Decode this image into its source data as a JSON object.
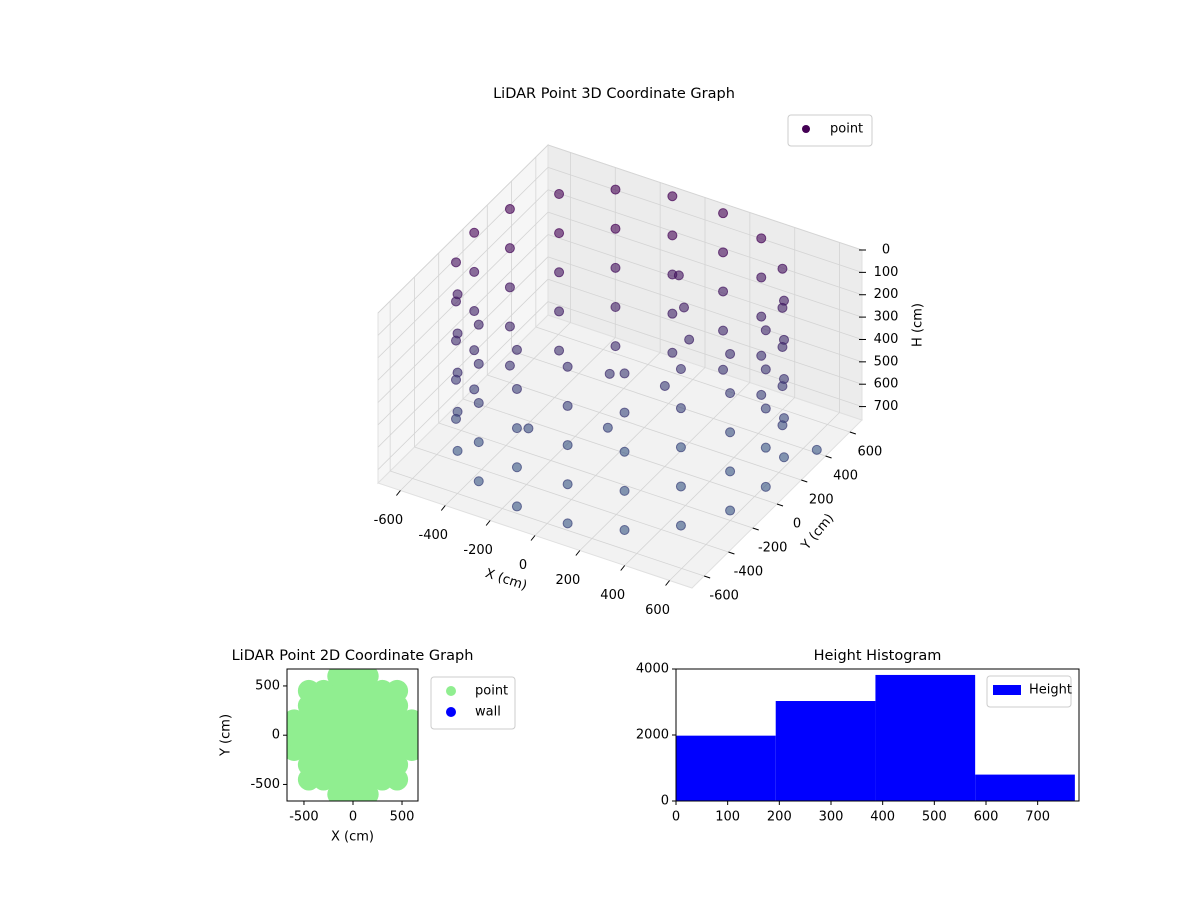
{
  "chart_data": [
    {
      "type": "scatter3d",
      "title": "LiDAR Point 3D Coordinate Graph",
      "xlabel": "X (cm)",
      "ylabel": "Y (cm)",
      "zlabel": "H (cm)",
      "xlim": [
        -700,
        700
      ],
      "ylim": [
        -700,
        700
      ],
      "zlim": [
        760,
        0
      ],
      "xticks": [
        -600,
        -400,
        -200,
        0,
        200,
        400,
        600
      ],
      "yticks": [
        -600,
        -400,
        -200,
        0,
        200,
        400,
        600
      ],
      "zticks": [
        0,
        100,
        200,
        300,
        400,
        500,
        600,
        700
      ],
      "grid": true,
      "legend": "upper right",
      "series": [
        {
          "name": "point",
          "color": "#440154",
          "x": [
            650,
            611,
            498,
            325,
            113,
            -113,
            -325,
            -498,
            -611,
            -650,
            -611,
            -498,
            -325,
            -113,
            113,
            325,
            498,
            611,
            650,
            611,
            498,
            325,
            113,
            -113,
            -325,
            -498,
            -611,
            -650,
            -611,
            -498,
            -325,
            -113,
            113,
            325,
            498,
            611,
            650,
            611,
            498,
            325,
            113,
            -113,
            -325,
            -498,
            -611,
            -650,
            -611,
            -498,
            -325,
            -113,
            113,
            325,
            498,
            611,
            650,
            611,
            498,
            325,
            113,
            -113,
            -325,
            -498,
            -611,
            -650,
            -611,
            -498,
            -325,
            -113,
            113,
            325,
            498,
            611,
            650,
            611,
            498,
            325,
            113,
            -113,
            -325,
            -498,
            -611,
            -650,
            -611,
            -498,
            -325,
            -113,
            113,
            325,
            498,
            611,
            100,
            150,
            200,
            -100,
            0,
            200,
            -300,
            650
          ],
          "y": [
            0,
            222,
            418,
            563,
            640,
            640,
            563,
            418,
            222,
            0,
            -222,
            -418,
            -563,
            -640,
            -640,
            -563,
            -418,
            -222,
            0,
            222,
            418,
            563,
            640,
            640,
            563,
            418,
            222,
            0,
            -222,
            -418,
            -563,
            -640,
            -640,
            -563,
            -418,
            -222,
            0,
            222,
            418,
            563,
            640,
            640,
            563,
            418,
            222,
            0,
            -222,
            -418,
            -563,
            -640,
            -640,
            -563,
            -418,
            -222,
            0,
            222,
            418,
            563,
            640,
            640,
            563,
            418,
            222,
            0,
            -222,
            -418,
            -563,
            -640,
            -640,
            -563,
            -418,
            -222,
            0,
            222,
            418,
            563,
            640,
            640,
            563,
            418,
            222,
            0,
            -222,
            -418,
            -563,
            -640,
            -640,
            -563,
            -418,
            -222,
            300,
            250,
            200,
            100,
            -100,
            0,
            -200,
            420
          ],
          "z": [
            0,
            0,
            0,
            0,
            0,
            0,
            0,
            0,
            0,
            0,
            0,
            0,
            0,
            0,
            0,
            0,
            0,
            0,
            175,
            175,
            175,
            175,
            175,
            175,
            175,
            175,
            175,
            175,
            175,
            175,
            175,
            175,
            175,
            175,
            175,
            175,
            350,
            350,
            350,
            350,
            350,
            350,
            350,
            350,
            350,
            350,
            350,
            350,
            350,
            350,
            350,
            350,
            350,
            350,
            525,
            525,
            525,
            525,
            525,
            525,
            525,
            525,
            525,
            525,
            525,
            525,
            525,
            525,
            525,
            525,
            525,
            525,
            700,
            700,
            700,
            700,
            700,
            700,
            700,
            700,
            700,
            700,
            700,
            700,
            700,
            700,
            700,
            700,
            700,
            700,
            100,
            200,
            300,
            500,
            600,
            400,
            650,
            760
          ]
        }
      ]
    },
    {
      "type": "scatter",
      "title": "LiDAR Point 2D Coordinate Graph",
      "xlabel": "X (cm)",
      "ylabel": "Y (cm)",
      "xlim": [
        -673,
        663
      ],
      "ylim": [
        -668,
        672
      ],
      "xticks": [
        -500,
        0,
        500
      ],
      "yticks": [
        -500,
        0,
        500
      ],
      "legend": "outside upper right",
      "series": [
        {
          "name": "point",
          "color": "#90ee90",
          "x": [
            -600,
            -600,
            -600,
            -450,
            -450,
            -450,
            -450,
            -450,
            -450,
            -450,
            -300,
            -300,
            -300,
            -300,
            -300,
            -300,
            -300,
            -150,
            -150,
            -150,
            -150,
            -150,
            -150,
            -150,
            -150,
            -150,
            0,
            0,
            0,
            0,
            0,
            0,
            0,
            0,
            0,
            150,
            150,
            150,
            150,
            150,
            150,
            150,
            150,
            150,
            300,
            300,
            300,
            300,
            300,
            300,
            300,
            450,
            450,
            450,
            450,
            450,
            450,
            450,
            600,
            600,
            600
          ],
          "y": [
            -150,
            0,
            150,
            -450,
            -300,
            -150,
            0,
            150,
            300,
            450,
            -450,
            -300,
            -150,
            0,
            150,
            300,
            450,
            -600,
            -450,
            -300,
            -150,
            0,
            150,
            300,
            450,
            600,
            -600,
            -450,
            -300,
            -150,
            0,
            150,
            300,
            450,
            600,
            -600,
            -450,
            -300,
            -150,
            0,
            150,
            300,
            450,
            600,
            -450,
            -300,
            -150,
            0,
            150,
            300,
            450,
            -450,
            -300,
            -150,
            0,
            150,
            300,
            450,
            -150,
            0,
            150
          ]
        },
        {
          "name": "wall",
          "color": "#0000ff",
          "x": [],
          "y": []
        }
      ]
    },
    {
      "type": "histogram",
      "title": "Height Histogram",
      "xlim": [
        0,
        780
      ],
      "ylim": [
        0,
        4000
      ],
      "xticks": [
        0,
        100,
        200,
        300,
        400,
        500,
        600,
        700
      ],
      "yticks": [
        0,
        2000,
        4000
      ],
      "legend": "upper right",
      "series": [
        {
          "name": "Height",
          "color": "#0000ff",
          "bins": [
            0,
            193,
            386,
            579,
            772
          ],
          "values": [
            1980,
            3030,
            3820,
            800
          ]
        }
      ]
    }
  ]
}
